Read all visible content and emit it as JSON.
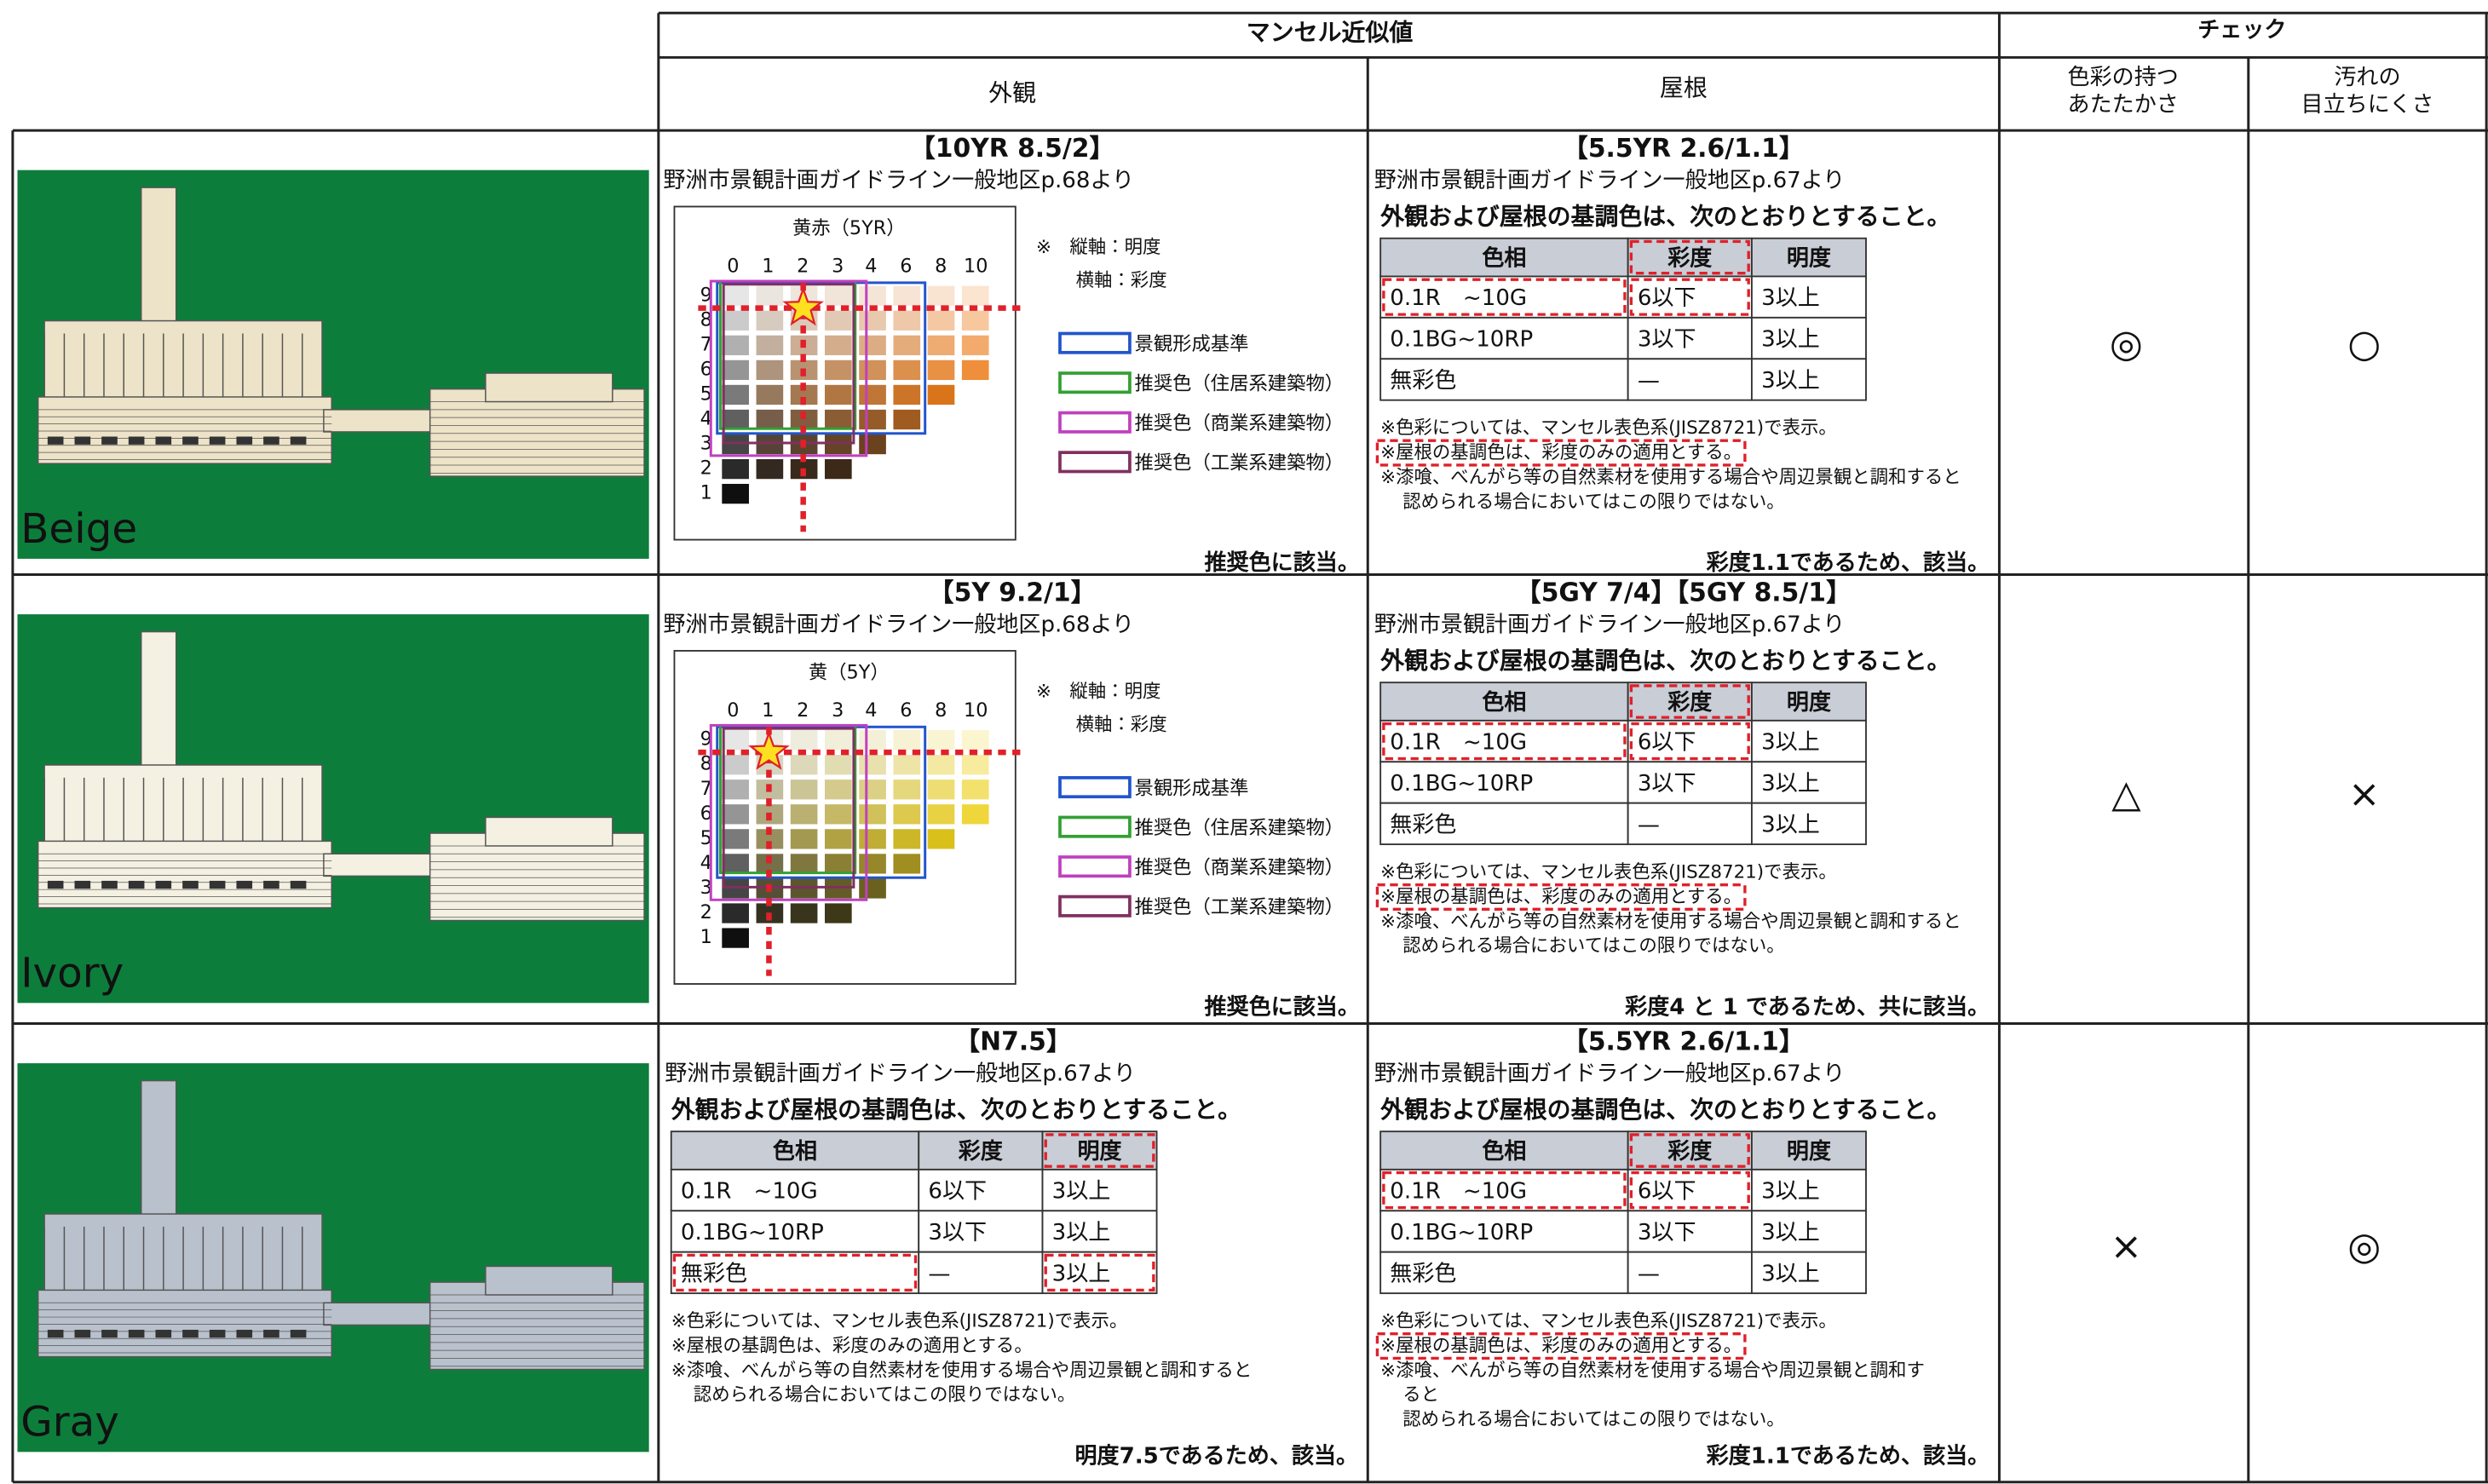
{
  "header": {
    "munsell": "マンセル近似値",
    "check": "チェック",
    "exterior": "外観",
    "roof": "屋根",
    "warmth": [
      "色彩の持つ",
      "あたたかさ"
    ],
    "dirt": [
      "汚れの",
      "目立ちにくさ"
    ]
  },
  "rows": [
    {
      "image_label": "Beige",
      "exterior": {
        "code": "【10YR 8.5/2】",
        "source": "野洲市景観計画ガイドライン一般地区p.68より",
        "chart": {
          "title": "黄赤（5YR）",
          "x_ticks": [
            "0",
            "1",
            "2",
            "3",
            "4",
            "6",
            "8",
            "10"
          ],
          "y_ticks": [
            "9",
            "8",
            "7",
            "6",
            "5",
            "4",
            "3",
            "2",
            "1"
          ],
          "notes": [
            "※　縦軸：明度",
            "横軸：彩度"
          ],
          "legend": [
            "景観形成基準",
            "推奨色（住居系建築物）",
            "推奨色（商業系建築物）",
            "推奨色（工業系建築物）"
          ]
        },
        "verdict": "推奨色に該当。"
      },
      "roof": {
        "code": "【5.5YR 2.6/1.1】",
        "source": "野洲市景観計画ガイドライン一般地区p.67より",
        "heading": "外観および屋根の基調色は、次のとおりとすること。",
        "table": {
          "headers": [
            "色相",
            "彩度",
            "明度"
          ],
          "rows": [
            [
              "0.1R　~10G",
              "6以下",
              "3以上"
            ],
            [
              "0.1BG~10RP",
              "3以下",
              "3以上"
            ],
            [
              "無彩色",
              "—",
              "3以上"
            ]
          ]
        },
        "notes": [
          "※色彩については、マンセル表色系(JISZ8721)で表示。",
          "※屋根の基調色は、彩度のみの適用とする。",
          "※漆喰、べんがら等の自然素材を使用する場合や周辺景観と調和すると",
          "認められる場合においてはこの限りではない。"
        ],
        "verdict": "彩度1.1であるため、該当。"
      },
      "warmth": "◎",
      "dirt": "○"
    },
    {
      "image_label": "Ivory",
      "exterior": {
        "code": "【5Y 9.2/1】",
        "source": "野洲市景観計画ガイドライン一般地区p.68より",
        "chart": {
          "title": "黄（5Y）",
          "x_ticks": [
            "0",
            "1",
            "2",
            "3",
            "4",
            "6",
            "8",
            "10"
          ],
          "y_ticks": [
            "9",
            "8",
            "7",
            "6",
            "5",
            "4",
            "3",
            "2",
            "1"
          ],
          "notes": [
            "※　縦軸：明度",
            "横軸：彩度"
          ],
          "legend": [
            "景観形成基準",
            "推奨色（住居系建築物）",
            "推奨色（商業系建築物）",
            "推奨色（工業系建築物）"
          ]
        },
        "verdict": "推奨色に該当。"
      },
      "roof": {
        "code": "【5GY 7/4】【5GY 8.5/1】",
        "source": "野洲市景観計画ガイドライン一般地区p.67より",
        "heading": "外観および屋根の基調色は、次のとおりとすること。",
        "table": {
          "headers": [
            "色相",
            "彩度",
            "明度"
          ],
          "rows": [
            [
              "0.1R　~10G",
              "6以下",
              "3以上"
            ],
            [
              "0.1BG~10RP",
              "3以下",
              "3以上"
            ],
            [
              "無彩色",
              "—",
              "3以上"
            ]
          ]
        },
        "notes": [
          "※色彩については、マンセル表色系(JISZ8721)で表示。",
          "※屋根の基調色は、彩度のみの適用とする。",
          "※漆喰、べんがら等の自然素材を使用する場合や周辺景観と調和すると",
          "認められる場合においてはこの限りではない。"
        ],
        "verdict": "彩度4 と 1 であるため、共に該当。"
      },
      "warmth": "△",
      "dirt": "×"
    },
    {
      "image_label": "Gray",
      "exterior": {
        "code": "【N7.5】",
        "source": "野洲市景観計画ガイドライン一般地区p.67より",
        "heading": "外観および屋根の基調色は、次のとおりとすること。",
        "table": {
          "headers": [
            "色相",
            "彩度",
            "明度"
          ],
          "rows": [
            [
              "0.1R　~10G",
              "6以下",
              "3以上"
            ],
            [
              "0.1BG~10RP",
              "3以下",
              "3以上"
            ],
            [
              "無彩色",
              "—",
              "3以上"
            ]
          ]
        },
        "notes": [
          "※色彩については、マンセル表色系(JISZ8721)で表示。",
          "※屋根の基調色は、彩度のみの適用とする。",
          "※漆喰、べんがら等の自然素材を使用する場合や周辺景観と調和すると",
          "認められる場合においてはこの限りではない。"
        ],
        "verdict": "明度7.5であるため、該当。"
      },
      "roof": {
        "code": "【5.5YR 2.6/1.1】",
        "source": "野洲市景観計画ガイドライン一般地区p.67より",
        "heading": "外観および屋根の基調色は、次のとおりとすること。",
        "table": {
          "headers": [
            "色相",
            "彩度",
            "明度"
          ],
          "rows": [
            [
              "0.1R　~10G",
              "6以下",
              "3以上"
            ],
            [
              "0.1BG~10RP",
              "3以下",
              "3以上"
            ],
            [
              "無彩色",
              "—",
              "3以上"
            ]
          ]
        },
        "notes": [
          "※色彩については、マンセル表色系(JISZ8721)で表示。",
          "※屋根の基調色は、彩度のみの適用とする。",
          "※漆喰、べんがら等の自然素材を使用する場合や周辺景観と調和す",
          "ると",
          "認められる場合においてはこの限りではない。"
        ],
        "verdict": "彩度1.1であるため、該当。"
      },
      "warmth": "×",
      "dirt": "◎"
    }
  ]
}
